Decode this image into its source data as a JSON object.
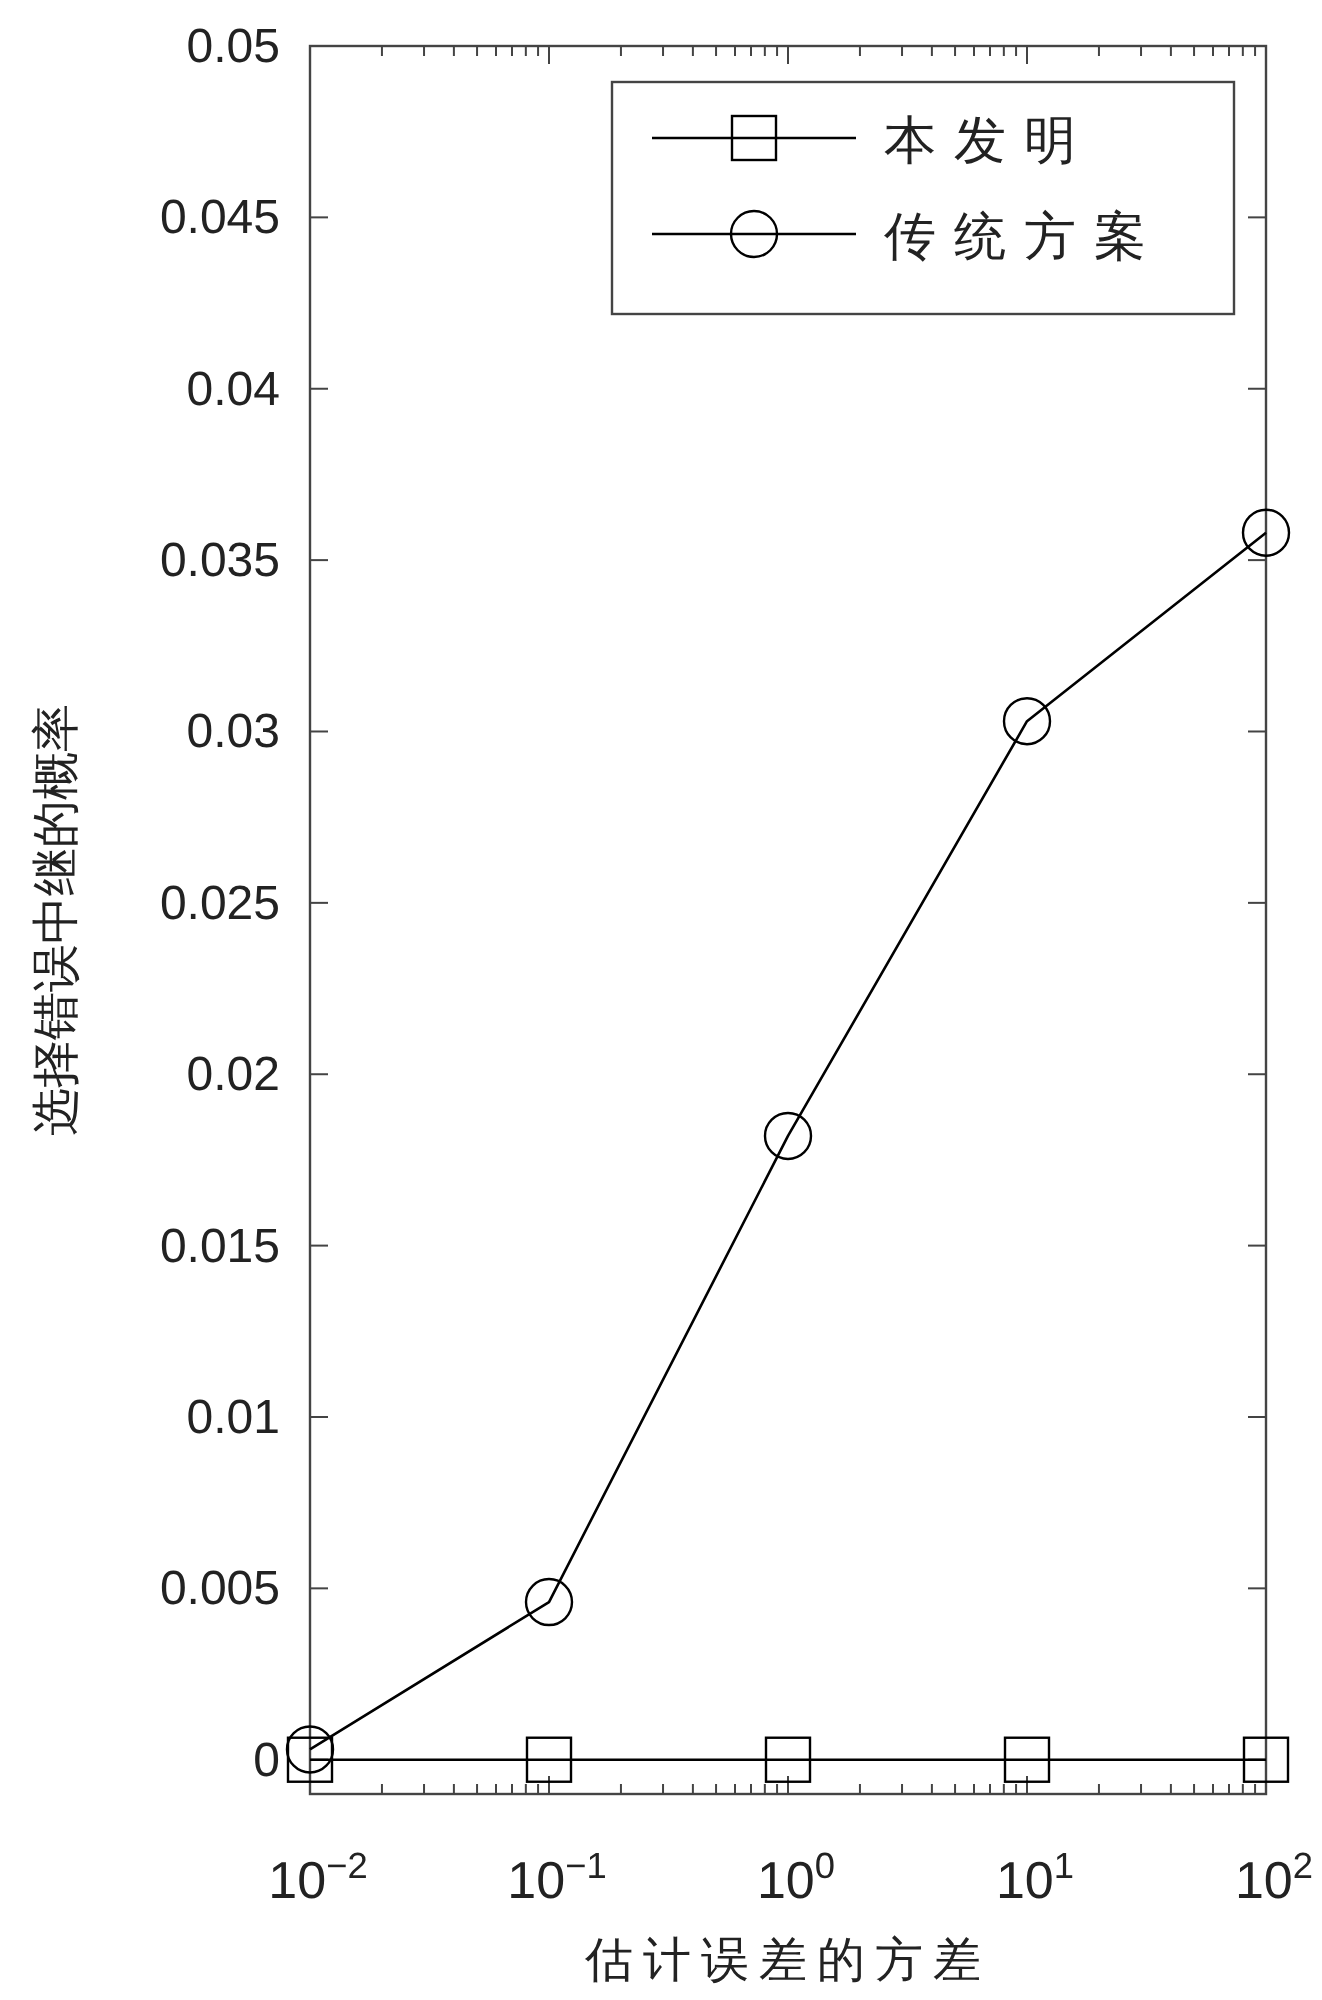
{
  "chart_data": {
    "type": "line",
    "xlabel": "估计误差的方差",
    "ylabel": "选择错误中继的概率",
    "x": [
      0.01,
      0.1,
      1,
      10,
      100
    ],
    "series": [
      {
        "name": "本发明",
        "color": "#000000",
        "marker": "square",
        "values": [
          0,
          0,
          0,
          0,
          0
        ]
      },
      {
        "name": "传统方案",
        "color": "#000000",
        "marker": "circle",
        "values": [
          0.0003,
          0.0046,
          0.0182,
          0.0303,
          0.0358
        ]
      }
    ],
    "log": "x",
    "xlim": [
      0.01,
      100
    ],
    "xticks": [
      {
        "value": 0.01,
        "label": "10$^{−2}$"
      },
      {
        "value": 0.1,
        "label": "10$^{−1}$"
      },
      {
        "value": 1,
        "label": "10$^{0}$"
      },
      {
        "value": 10,
        "label": "10$^{1}$"
      },
      {
        "value": 100,
        "label": "10$^{2}$"
      }
    ],
    "ylim": [
      -0.001,
      0.05
    ],
    "yticks": [
      0,
      0.005,
      0.01,
      0.015,
      0.02,
      0.025,
      0.03,
      0.035,
      0.04,
      0.045,
      0.05
    ],
    "grid": false,
    "legend": "top right",
    "line_style": "solid"
  }
}
